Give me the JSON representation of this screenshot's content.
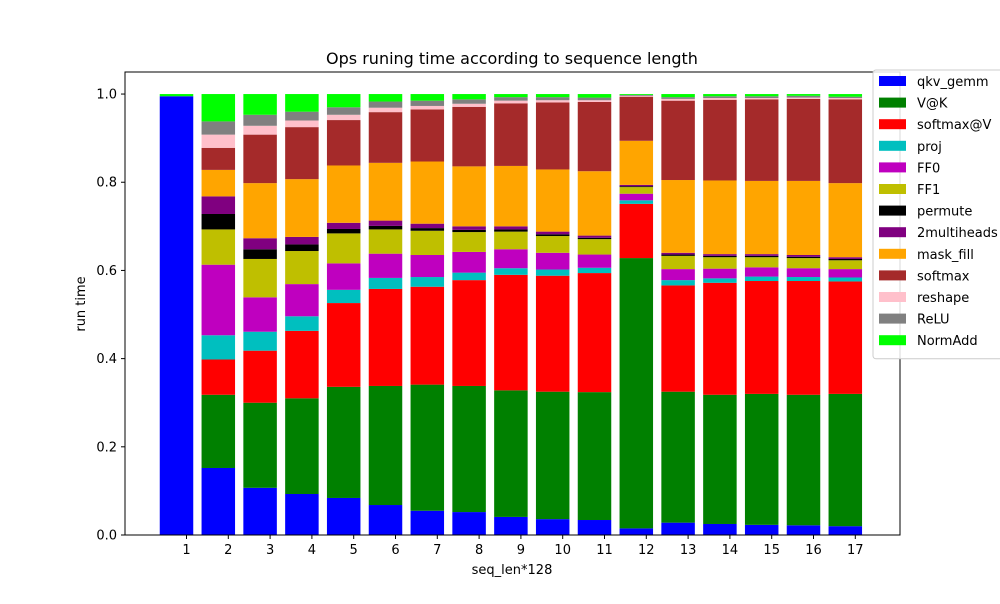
{
  "chart_data": {
    "type": "bar",
    "stacked": true,
    "title": "Ops runing time according to sequence length",
    "xlabel": "seq_len*128",
    "ylabel": "run time",
    "ylim": [
      0,
      1.05
    ],
    "yticks": [
      "0.0",
      "0.2",
      "0.4",
      "0.6",
      "0.8",
      "1.0"
    ],
    "categories": [
      "1",
      "2",
      "3",
      "4",
      "5",
      "6",
      "7",
      "8",
      "9",
      "10",
      "11",
      "12",
      "13",
      "14",
      "15",
      "16",
      "17"
    ],
    "legend_position": "top-right",
    "grid": false,
    "series": [
      {
        "name": "qkv_gemm",
        "color": "#0000ff",
        "values": [
          0.995,
          0.152,
          0.107,
          0.093,
          0.084,
          0.068,
          0.055,
          0.052,
          0.041,
          0.036,
          0.034,
          0.015,
          0.028,
          0.025,
          0.023,
          0.022,
          0.02
        ]
      },
      {
        "name": "V@K",
        "color": "#008000",
        "values": [
          0.0,
          0.166,
          0.193,
          0.217,
          0.252,
          0.27,
          0.286,
          0.286,
          0.287,
          0.289,
          0.29,
          0.613,
          0.297,
          0.293,
          0.297,
          0.296,
          0.3
        ]
      },
      {
        "name": "softmax@V",
        "color": "#ff0000",
        "values": [
          0.0,
          0.08,
          0.118,
          0.153,
          0.19,
          0.22,
          0.222,
          0.24,
          0.262,
          0.263,
          0.27,
          0.123,
          0.241,
          0.254,
          0.256,
          0.258,
          0.255
        ]
      },
      {
        "name": "proj",
        "color": "#00bfbf",
        "values": [
          0.0,
          0.055,
          0.043,
          0.033,
          0.03,
          0.025,
          0.022,
          0.017,
          0.015,
          0.014,
          0.012,
          0.008,
          0.012,
          0.01,
          0.01,
          0.009,
          0.009
        ]
      },
      {
        "name": "FF0",
        "color": "#bf00bf",
        "values": [
          0.0,
          0.16,
          0.078,
          0.073,
          0.06,
          0.055,
          0.05,
          0.047,
          0.043,
          0.038,
          0.03,
          0.015,
          0.025,
          0.022,
          0.021,
          0.02,
          0.019
        ]
      },
      {
        "name": "FF1",
        "color": "#bfbf00",
        "values": [
          0.0,
          0.08,
          0.087,
          0.075,
          0.068,
          0.055,
          0.055,
          0.045,
          0.04,
          0.038,
          0.035,
          0.015,
          0.03,
          0.026,
          0.023,
          0.023,
          0.02
        ]
      },
      {
        "name": "permute",
        "color": "#000000",
        "values": [
          0.0,
          0.035,
          0.022,
          0.015,
          0.01,
          0.008,
          0.006,
          0.005,
          0.005,
          0.004,
          0.003,
          0.002,
          0.003,
          0.003,
          0.003,
          0.003,
          0.003
        ]
      },
      {
        "name": "2multiheads",
        "color": "#800080",
        "values": [
          0.0,
          0.04,
          0.025,
          0.017,
          0.014,
          0.012,
          0.01,
          0.008,
          0.007,
          0.006,
          0.005,
          0.003,
          0.004,
          0.004,
          0.004,
          0.004,
          0.004
        ]
      },
      {
        "name": "mask_fill",
        "color": "#ffa500",
        "values": [
          0.0,
          0.06,
          0.125,
          0.131,
          0.13,
          0.131,
          0.141,
          0.136,
          0.137,
          0.141,
          0.146,
          0.1,
          0.165,
          0.167,
          0.166,
          0.168,
          0.168
        ]
      },
      {
        "name": "softmax",
        "color": "#a52a2a",
        "values": [
          0.0,
          0.05,
          0.11,
          0.118,
          0.103,
          0.115,
          0.118,
          0.135,
          0.142,
          0.152,
          0.157,
          0.1,
          0.18,
          0.183,
          0.185,
          0.186,
          0.19
        ]
      },
      {
        "name": "reshape",
        "color": "#ffc0cb",
        "values": [
          0.0,
          0.03,
          0.02,
          0.015,
          0.012,
          0.01,
          0.008,
          0.007,
          0.006,
          0.005,
          0.004,
          0.002,
          0.004,
          0.004,
          0.003,
          0.003,
          0.003
        ]
      },
      {
        "name": "ReLU",
        "color": "#808080",
        "values": [
          0.0,
          0.03,
          0.025,
          0.02,
          0.017,
          0.014,
          0.012,
          0.01,
          0.008,
          0.007,
          0.006,
          0.002,
          0.004,
          0.004,
          0.004,
          0.004,
          0.003
        ]
      },
      {
        "name": "NormAdd",
        "color": "#00ff00",
        "values": [
          0.005,
          0.062,
          0.047,
          0.04,
          0.03,
          0.017,
          0.015,
          0.012,
          0.007,
          0.007,
          0.008,
          0.002,
          0.007,
          0.005,
          0.005,
          0.004,
          0.006
        ]
      }
    ]
  }
}
